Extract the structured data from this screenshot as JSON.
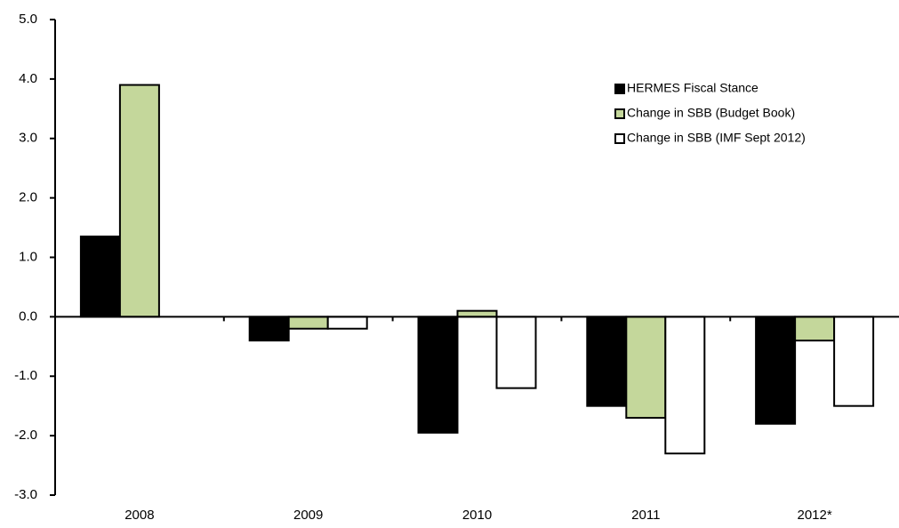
{
  "chart_data": {
    "type": "bar",
    "categories": [
      "2008",
      "2009",
      "2010",
      "2011",
      "2012*"
    ],
    "series": [
      {
        "name": "HERMES Fiscal Stance",
        "color": "#000000",
        "values": [
          1.35,
          -0.4,
          -1.95,
          -1.5,
          -1.8
        ]
      },
      {
        "name": "Change in SBB (Budget Book)",
        "color": "#c4d79b",
        "values": [
          3.9,
          -0.2,
          0.1,
          -1.7,
          -0.4
        ]
      },
      {
        "name": "Change in SBB (IMF Sept 2012)",
        "color": "#ffffff",
        "values": [
          null,
          -0.2,
          -1.2,
          -2.3,
          -1.5
        ]
      }
    ],
    "ylim": [
      -3,
      5
    ],
    "yticks": [
      {
        "value": -3,
        "label": "-3.0"
      },
      {
        "value": -2,
        "label": "-2.0"
      },
      {
        "value": -1,
        "label": "-1.0"
      },
      {
        "value": 0,
        "label": "0.0"
      },
      {
        "value": 1,
        "label": "1.0"
      },
      {
        "value": 2,
        "label": "2.0"
      },
      {
        "value": 3,
        "label": "3.0"
      },
      {
        "value": 4,
        "label": "4.0"
      },
      {
        "value": 5,
        "label": "5.0"
      }
    ],
    "grid": false,
    "legend": "upper right"
  }
}
